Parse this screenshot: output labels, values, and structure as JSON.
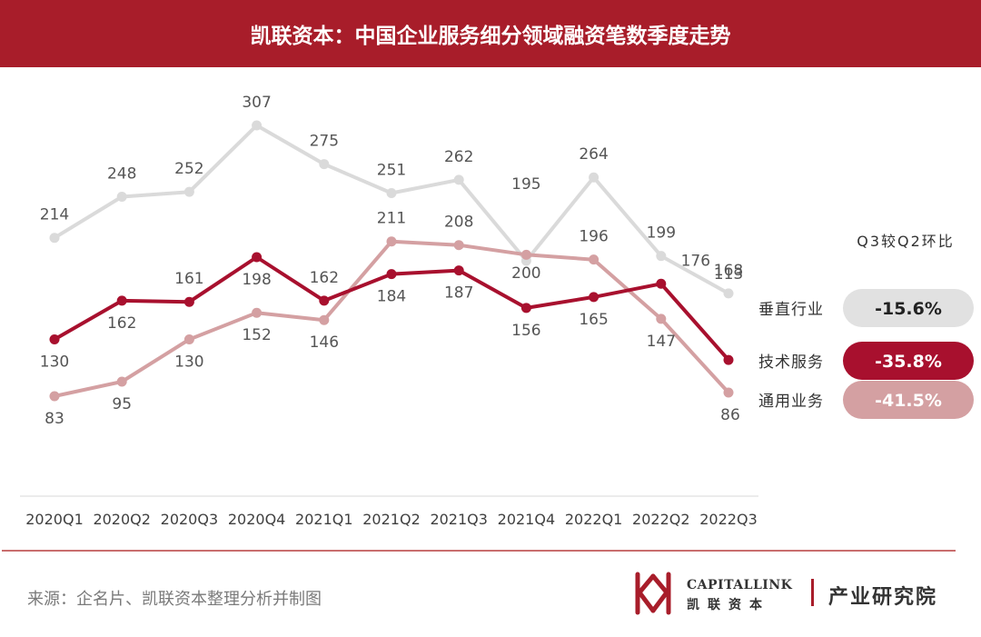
{
  "header": {
    "title": "凯联资本：中国企业服务细分领域融资笔数季度走势"
  },
  "colors": {
    "header_bg": "#a81d2a",
    "vertical": "#dadada",
    "tech": "#a8102e",
    "general": "#d4a0a2"
  },
  "chart_data": {
    "type": "line",
    "categories": [
      "2020Q1",
      "2020Q2",
      "2020Q3",
      "2020Q4",
      "2021Q1",
      "2021Q2",
      "2021Q3",
      "2021Q4",
      "2022Q1",
      "2022Q2",
      "2022Q3"
    ],
    "series": [
      {
        "name": "垂直行业",
        "values": [
          214,
          248,
          252,
          307,
          275,
          251,
          262,
          195,
          264,
          199,
          168
        ],
        "color": "#dadada",
        "change_label": "-15.6%"
      },
      {
        "name": "技术服务",
        "values": [
          130,
          162,
          161,
          198,
          162,
          184,
          187,
          156,
          165,
          176,
          113
        ],
        "color": "#a8102e",
        "change_label": "-35.8%"
      },
      {
        "name": "通用业务",
        "values": [
          83,
          95,
          130,
          152,
          146,
          211,
          208,
          200,
          196,
          147,
          86
        ],
        "color": "#d4a0a2",
        "change_label": "-41.5%"
      }
    ],
    "ylim": [
      0,
      350
    ],
    "legend_title": "Q3较Q2环比",
    "legend_position": "right"
  },
  "footer": {
    "source": "来源：企名片、凯联资本整理分析并制图",
    "logo_en": "CAPITALLINK",
    "logo_cn": "凯联资本",
    "institute": "产业研究院"
  }
}
